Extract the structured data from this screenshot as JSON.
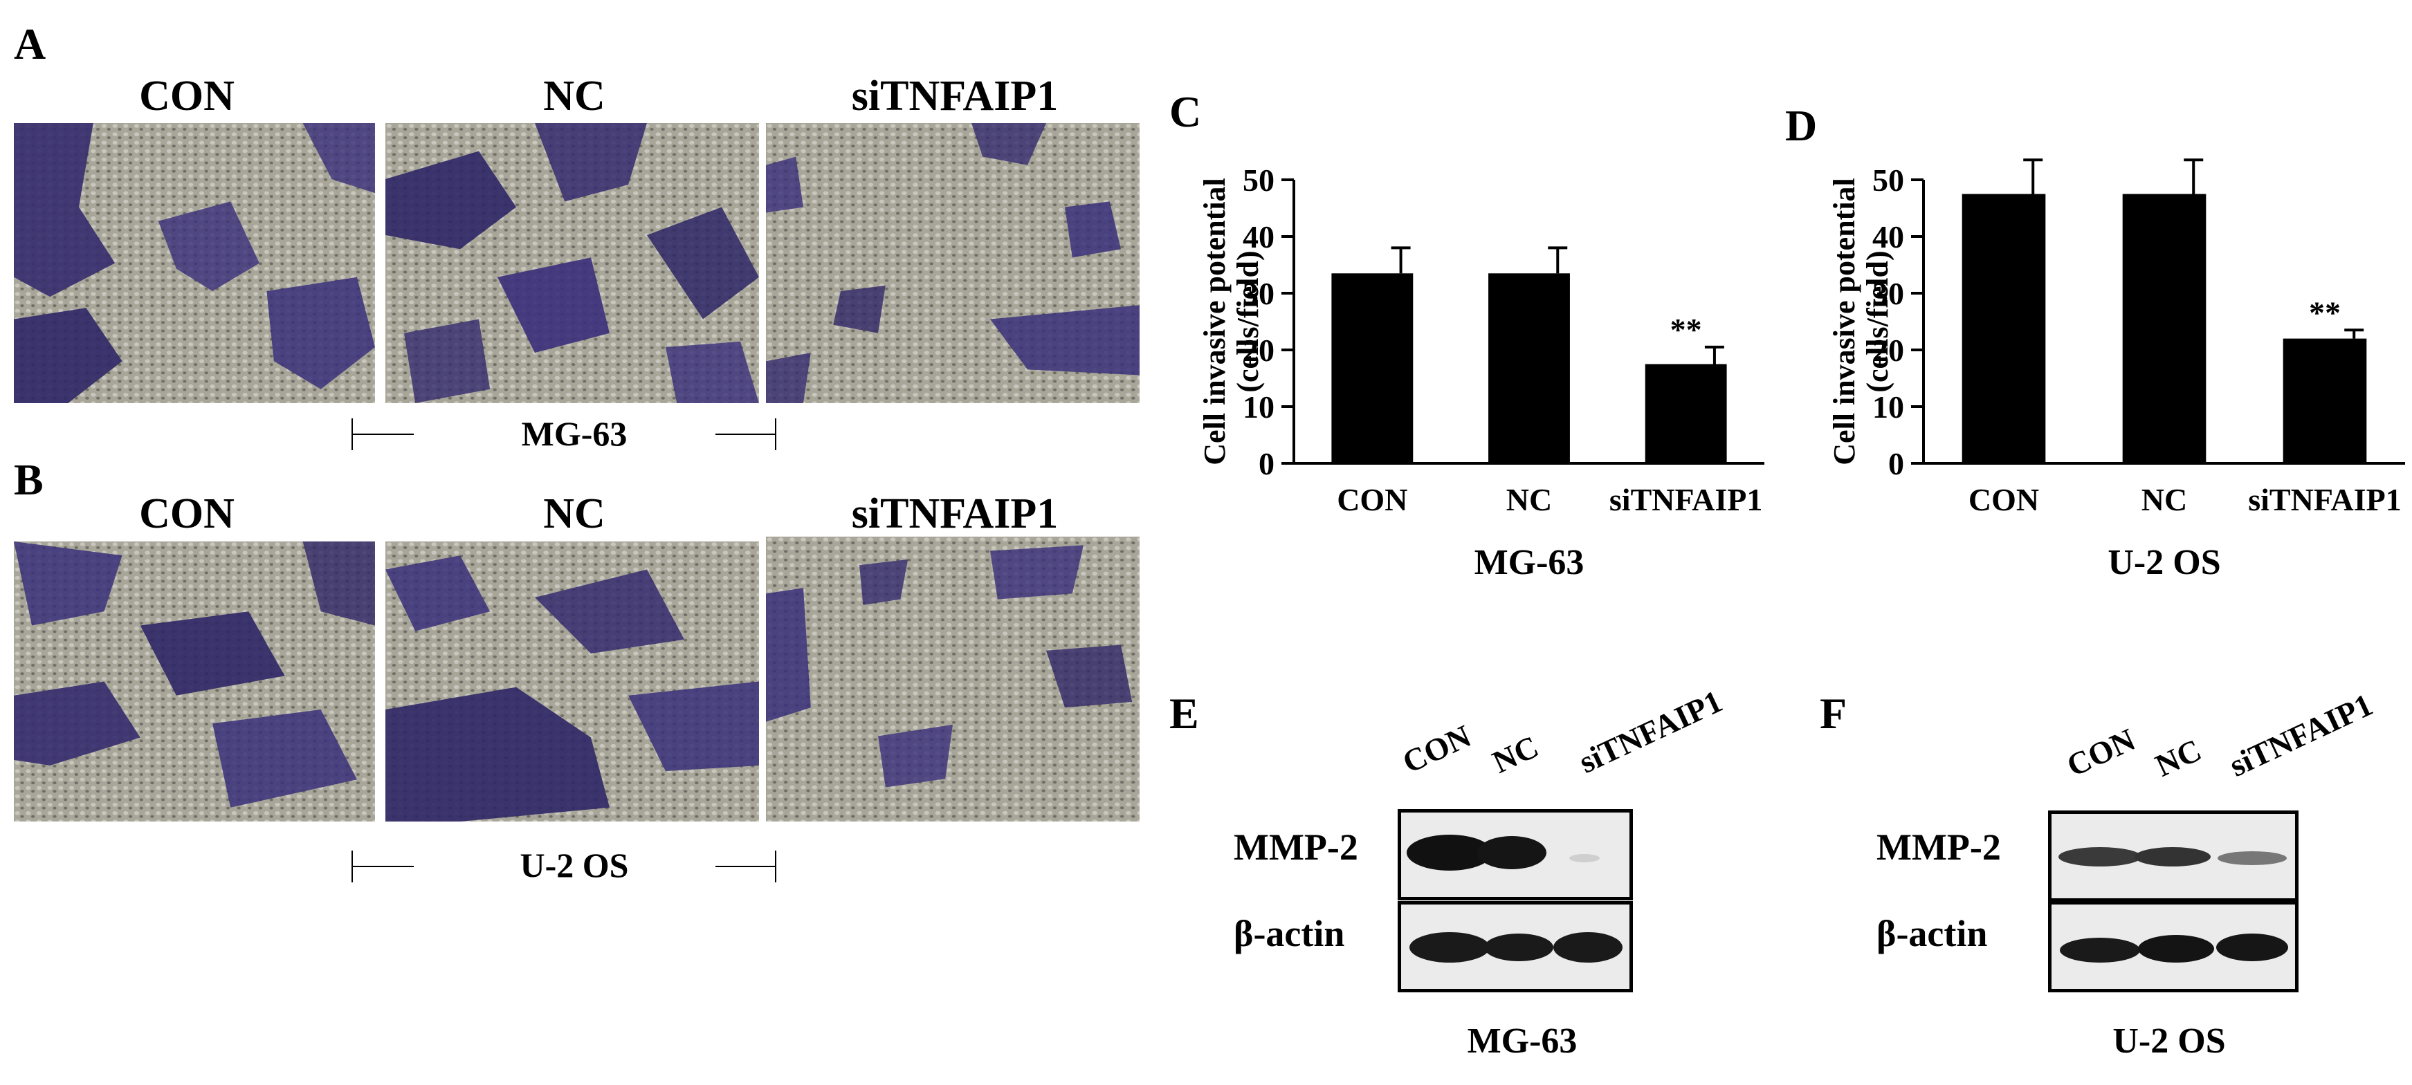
{
  "panels": {
    "A": "A",
    "B": "B",
    "C": "C",
    "D": "D",
    "E": "E",
    "F": "F"
  },
  "micrographs": {
    "columns": [
      "CON",
      "NC",
      "siTNFAIP1"
    ],
    "row_A_cell_line": "MG-63",
    "row_B_cell_line": "U-2 OS"
  },
  "chart_data": [
    {
      "type": "bar",
      "panel": "C",
      "ylabel": "Cell invasive potential\n(cells/field)",
      "ylabel_line1": "Cell invasive potential",
      "ylabel_line2": "(cells/field)",
      "xlabel": "MG-63",
      "categories": [
        "CON",
        "NC",
        "siTNFAIP1"
      ],
      "values": [
        33.5,
        33.5,
        17.5
      ],
      "errors": [
        4.5,
        4.5,
        3
      ],
      "annotations": [
        "",
        "",
        "**"
      ],
      "ylim": [
        0,
        50
      ],
      "yticks": [
        "0",
        "10",
        "20",
        "30",
        "40",
        "50"
      ],
      "grid": false,
      "bar_color": "#000000"
    },
    {
      "type": "bar",
      "panel": "D",
      "ylabel": "Cell invasive potential\n(cells/field)",
      "ylabel_line1": "Cell invasive potential",
      "ylabel_line2": "(cells/field)",
      "xlabel": "U-2 OS",
      "categories": [
        "CON",
        "NC",
        "siTNFAIP1"
      ],
      "values": [
        47.5,
        47.5,
        22
      ],
      "errors": [
        6,
        6,
        1.5
      ],
      "annotations": [
        "",
        "",
        "**"
      ],
      "ylim": [
        0,
        50
      ],
      "yticks": [
        "0",
        "10",
        "20",
        "30",
        "40",
        "50"
      ],
      "grid": false,
      "bar_color": "#000000"
    }
  ],
  "western_blots": {
    "E": {
      "lanes": [
        "CON",
        "NC",
        "siTNFAIP1"
      ],
      "rows": [
        "MMP-2",
        "β-actin"
      ],
      "cell_line": "MG-63"
    },
    "F": {
      "lanes": [
        "CON",
        "NC",
        "siTNFAIP1"
      ],
      "rows": [
        "MMP-2",
        "β-actin"
      ],
      "cell_line": "U-2 OS"
    }
  },
  "colors": {
    "stain": "#3a2f7a",
    "background_tissue": "#a9a79c",
    "bars": "#000000"
  }
}
